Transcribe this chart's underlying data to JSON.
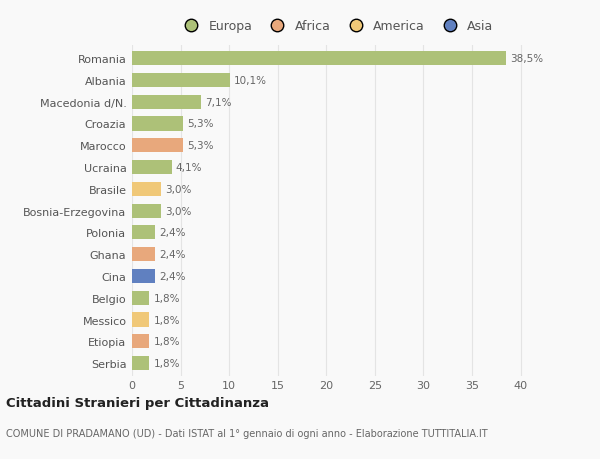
{
  "countries": [
    "Romania",
    "Albania",
    "Macedonia d/N.",
    "Croazia",
    "Marocco",
    "Ucraina",
    "Brasile",
    "Bosnia-Erzegovina",
    "Polonia",
    "Ghana",
    "Cina",
    "Belgio",
    "Messico",
    "Etiopia",
    "Serbia"
  ],
  "values": [
    38.5,
    10.1,
    7.1,
    5.3,
    5.3,
    4.1,
    3.0,
    3.0,
    2.4,
    2.4,
    2.4,
    1.8,
    1.8,
    1.8,
    1.8
  ],
  "labels": [
    "38,5%",
    "10,1%",
    "7,1%",
    "5,3%",
    "5,3%",
    "4,1%",
    "3,0%",
    "3,0%",
    "2,4%",
    "2,4%",
    "2,4%",
    "1,8%",
    "1,8%",
    "1,8%",
    "1,8%"
  ],
  "colors": [
    "#adc178",
    "#adc178",
    "#adc178",
    "#adc178",
    "#e8a87c",
    "#adc178",
    "#f0c878",
    "#adc178",
    "#adc178",
    "#e8a87c",
    "#6080c0",
    "#adc178",
    "#f0c878",
    "#e8a87c",
    "#adc178"
  ],
  "legend_labels": [
    "Europa",
    "Africa",
    "America",
    "Asia"
  ],
  "legend_colors": [
    "#adc178",
    "#e8a87c",
    "#f0c878",
    "#6080c0"
  ],
  "title": "Cittadini Stranieri per Cittadinanza",
  "subtitle": "COMUNE DI PRADAMANO (UD) - Dati ISTAT al 1° gennaio di ogni anno - Elaborazione TUTTITALIA.IT",
  "xlim": [
    0,
    42
  ],
  "xticks": [
    0,
    5,
    10,
    15,
    20,
    25,
    30,
    35,
    40
  ],
  "background_color": "#f9f9f9",
  "grid_color": "#e4e4e4"
}
